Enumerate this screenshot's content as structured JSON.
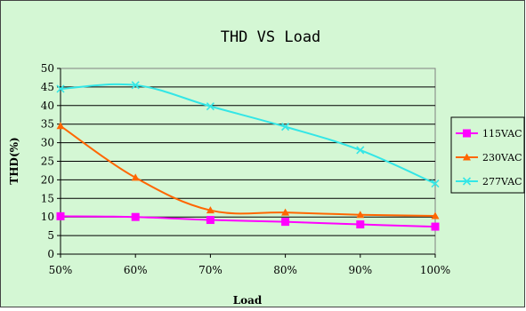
{
  "chart_data": {
    "type": "line",
    "title": "THD VS Load",
    "xlabel": "Load",
    "ylabel": "THD(%)",
    "categories": [
      "50%",
      "60%",
      "70%",
      "80%",
      "90%",
      "100%"
    ],
    "ylim": [
      0,
      50
    ],
    "yticks": [
      0,
      5,
      10,
      15,
      20,
      25,
      30,
      35,
      40,
      45,
      50
    ],
    "grid": "horizontal",
    "legend_position": "right",
    "series": [
      {
        "name": "115VAC",
        "values": [
          10.2,
          10.0,
          9.2,
          8.7,
          8.0,
          7.4
        ],
        "color": "#ff00ff",
        "marker": "square"
      },
      {
        "name": "230VAC",
        "values": [
          34.5,
          20.6,
          11.8,
          11.2,
          10.6,
          10.3
        ],
        "color": "#ff6600",
        "marker": "triangle"
      },
      {
        "name": "277VAC",
        "values": [
          44.5,
          45.5,
          39.8,
          34.3,
          28.0,
          19.0
        ],
        "color": "#33e6e6",
        "marker": "x"
      }
    ]
  }
}
